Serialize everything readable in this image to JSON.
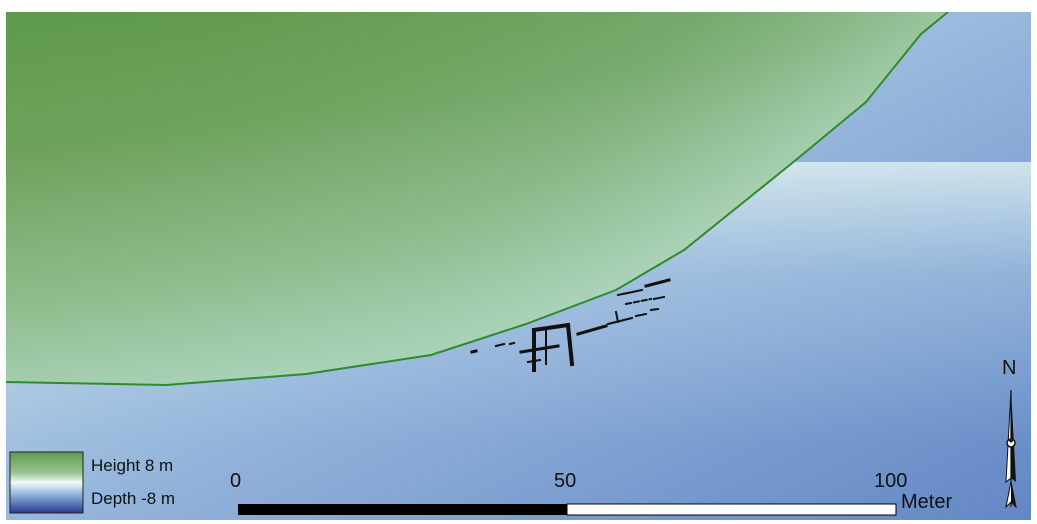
{
  "map": {
    "legend": {
      "high_label": "Height 8 m",
      "low_label": "Depth -8 m",
      "high_color": "#5f9a4f",
      "low_color": "#2b3f9a"
    },
    "scale_bar": {
      "ticks": [
        "0",
        "50",
        "100"
      ],
      "unit": "Meter"
    },
    "north_arrow": {
      "label": "N"
    },
    "colors": {
      "land": "#5f9a4f",
      "shore": "#cfe7e1",
      "water": "#8fb1d8",
      "deep_water": "#6c8fcb",
      "coastline": "#2e8b2e",
      "structures": "#111111"
    }
  }
}
